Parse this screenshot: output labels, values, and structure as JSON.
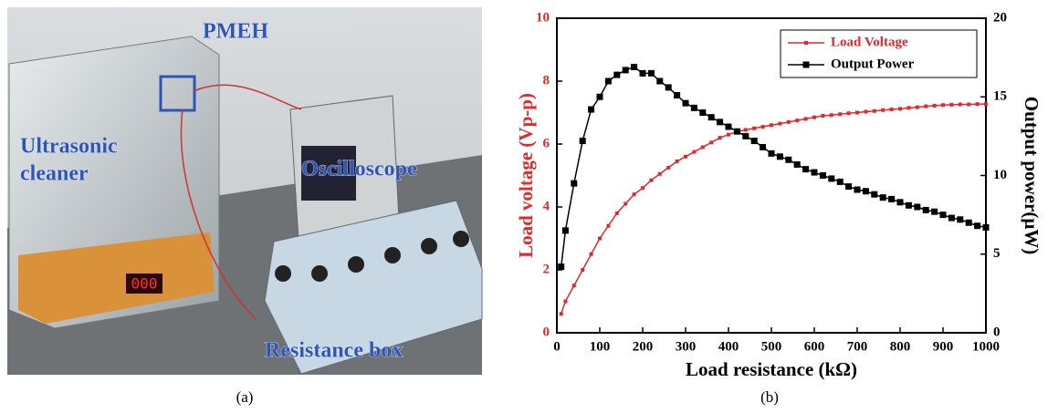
{
  "photo": {
    "labels": [
      "PMEH",
      "Ultrasonic",
      "cleaner",
      "Oscilloscope",
      "Resistance box"
    ]
  },
  "captions": [
    "(a)",
    "(b)"
  ],
  "chart_data": {
    "type": "line",
    "xlabel": "Load resistance (kΩ)",
    "ylabel": "Load voltage (Vp-p)",
    "y2label": "Output power(μW)",
    "x": [
      10,
      20,
      40,
      60,
      80,
      100,
      120,
      140,
      160,
      180,
      200,
      220,
      240,
      260,
      280,
      300,
      320,
      340,
      360,
      380,
      400,
      420,
      440,
      460,
      480,
      500,
      520,
      540,
      560,
      580,
      600,
      620,
      640,
      660,
      680,
      700,
      720,
      740,
      760,
      780,
      800,
      820,
      840,
      860,
      880,
      900,
      920,
      940,
      960,
      980,
      1000
    ],
    "series": [
      {
        "name": "Load Voltage",
        "color": "#e8262a",
        "values": [
          0.6,
          1.0,
          1.5,
          2.0,
          2.5,
          3.0,
          3.4,
          3.8,
          4.1,
          4.4,
          4.6,
          4.85,
          5.05,
          5.25,
          5.45,
          5.6,
          5.75,
          5.9,
          6.05,
          6.2,
          6.3,
          6.4,
          6.45,
          6.5,
          6.55,
          6.6,
          6.65,
          6.7,
          6.75,
          6.8,
          6.85,
          6.9,
          6.92,
          6.95,
          6.98,
          7.0,
          7.03,
          7.05,
          7.08,
          7.1,
          7.12,
          7.15,
          7.17,
          7.2,
          7.22,
          7.24,
          7.25,
          7.26,
          7.26,
          7.27,
          7.27
        ]
      },
      {
        "name": "Output Power",
        "color": "#000000",
        "axis": "y2",
        "values": [
          4.2,
          6.5,
          9.5,
          12.2,
          14.2,
          15.0,
          16.0,
          16.4,
          16.7,
          16.9,
          16.5,
          16.5,
          16.0,
          15.6,
          15.1,
          14.6,
          14.3,
          14.0,
          13.7,
          13.4,
          13.1,
          12.8,
          12.5,
          12.2,
          11.8,
          11.4,
          11.2,
          11.0,
          10.7,
          10.4,
          10.2,
          10.0,
          9.8,
          9.6,
          9.3,
          9.1,
          9.0,
          8.8,
          8.6,
          8.5,
          8.3,
          8.1,
          8.0,
          7.8,
          7.7,
          7.5,
          7.3,
          7.2,
          7.0,
          6.8,
          6.7
        ]
      }
    ],
    "xlim": [
      0,
      1000
    ],
    "xticks": [
      0,
      100,
      200,
      300,
      400,
      500,
      600,
      700,
      800,
      900,
      1000
    ],
    "ylim": [
      0,
      10
    ],
    "yticks": [
      0,
      2,
      4,
      6,
      8,
      10
    ],
    "y2lim": [
      0,
      20
    ],
    "y2ticks": [
      0,
      5,
      10,
      15,
      20
    ],
    "legend": "top-right"
  }
}
